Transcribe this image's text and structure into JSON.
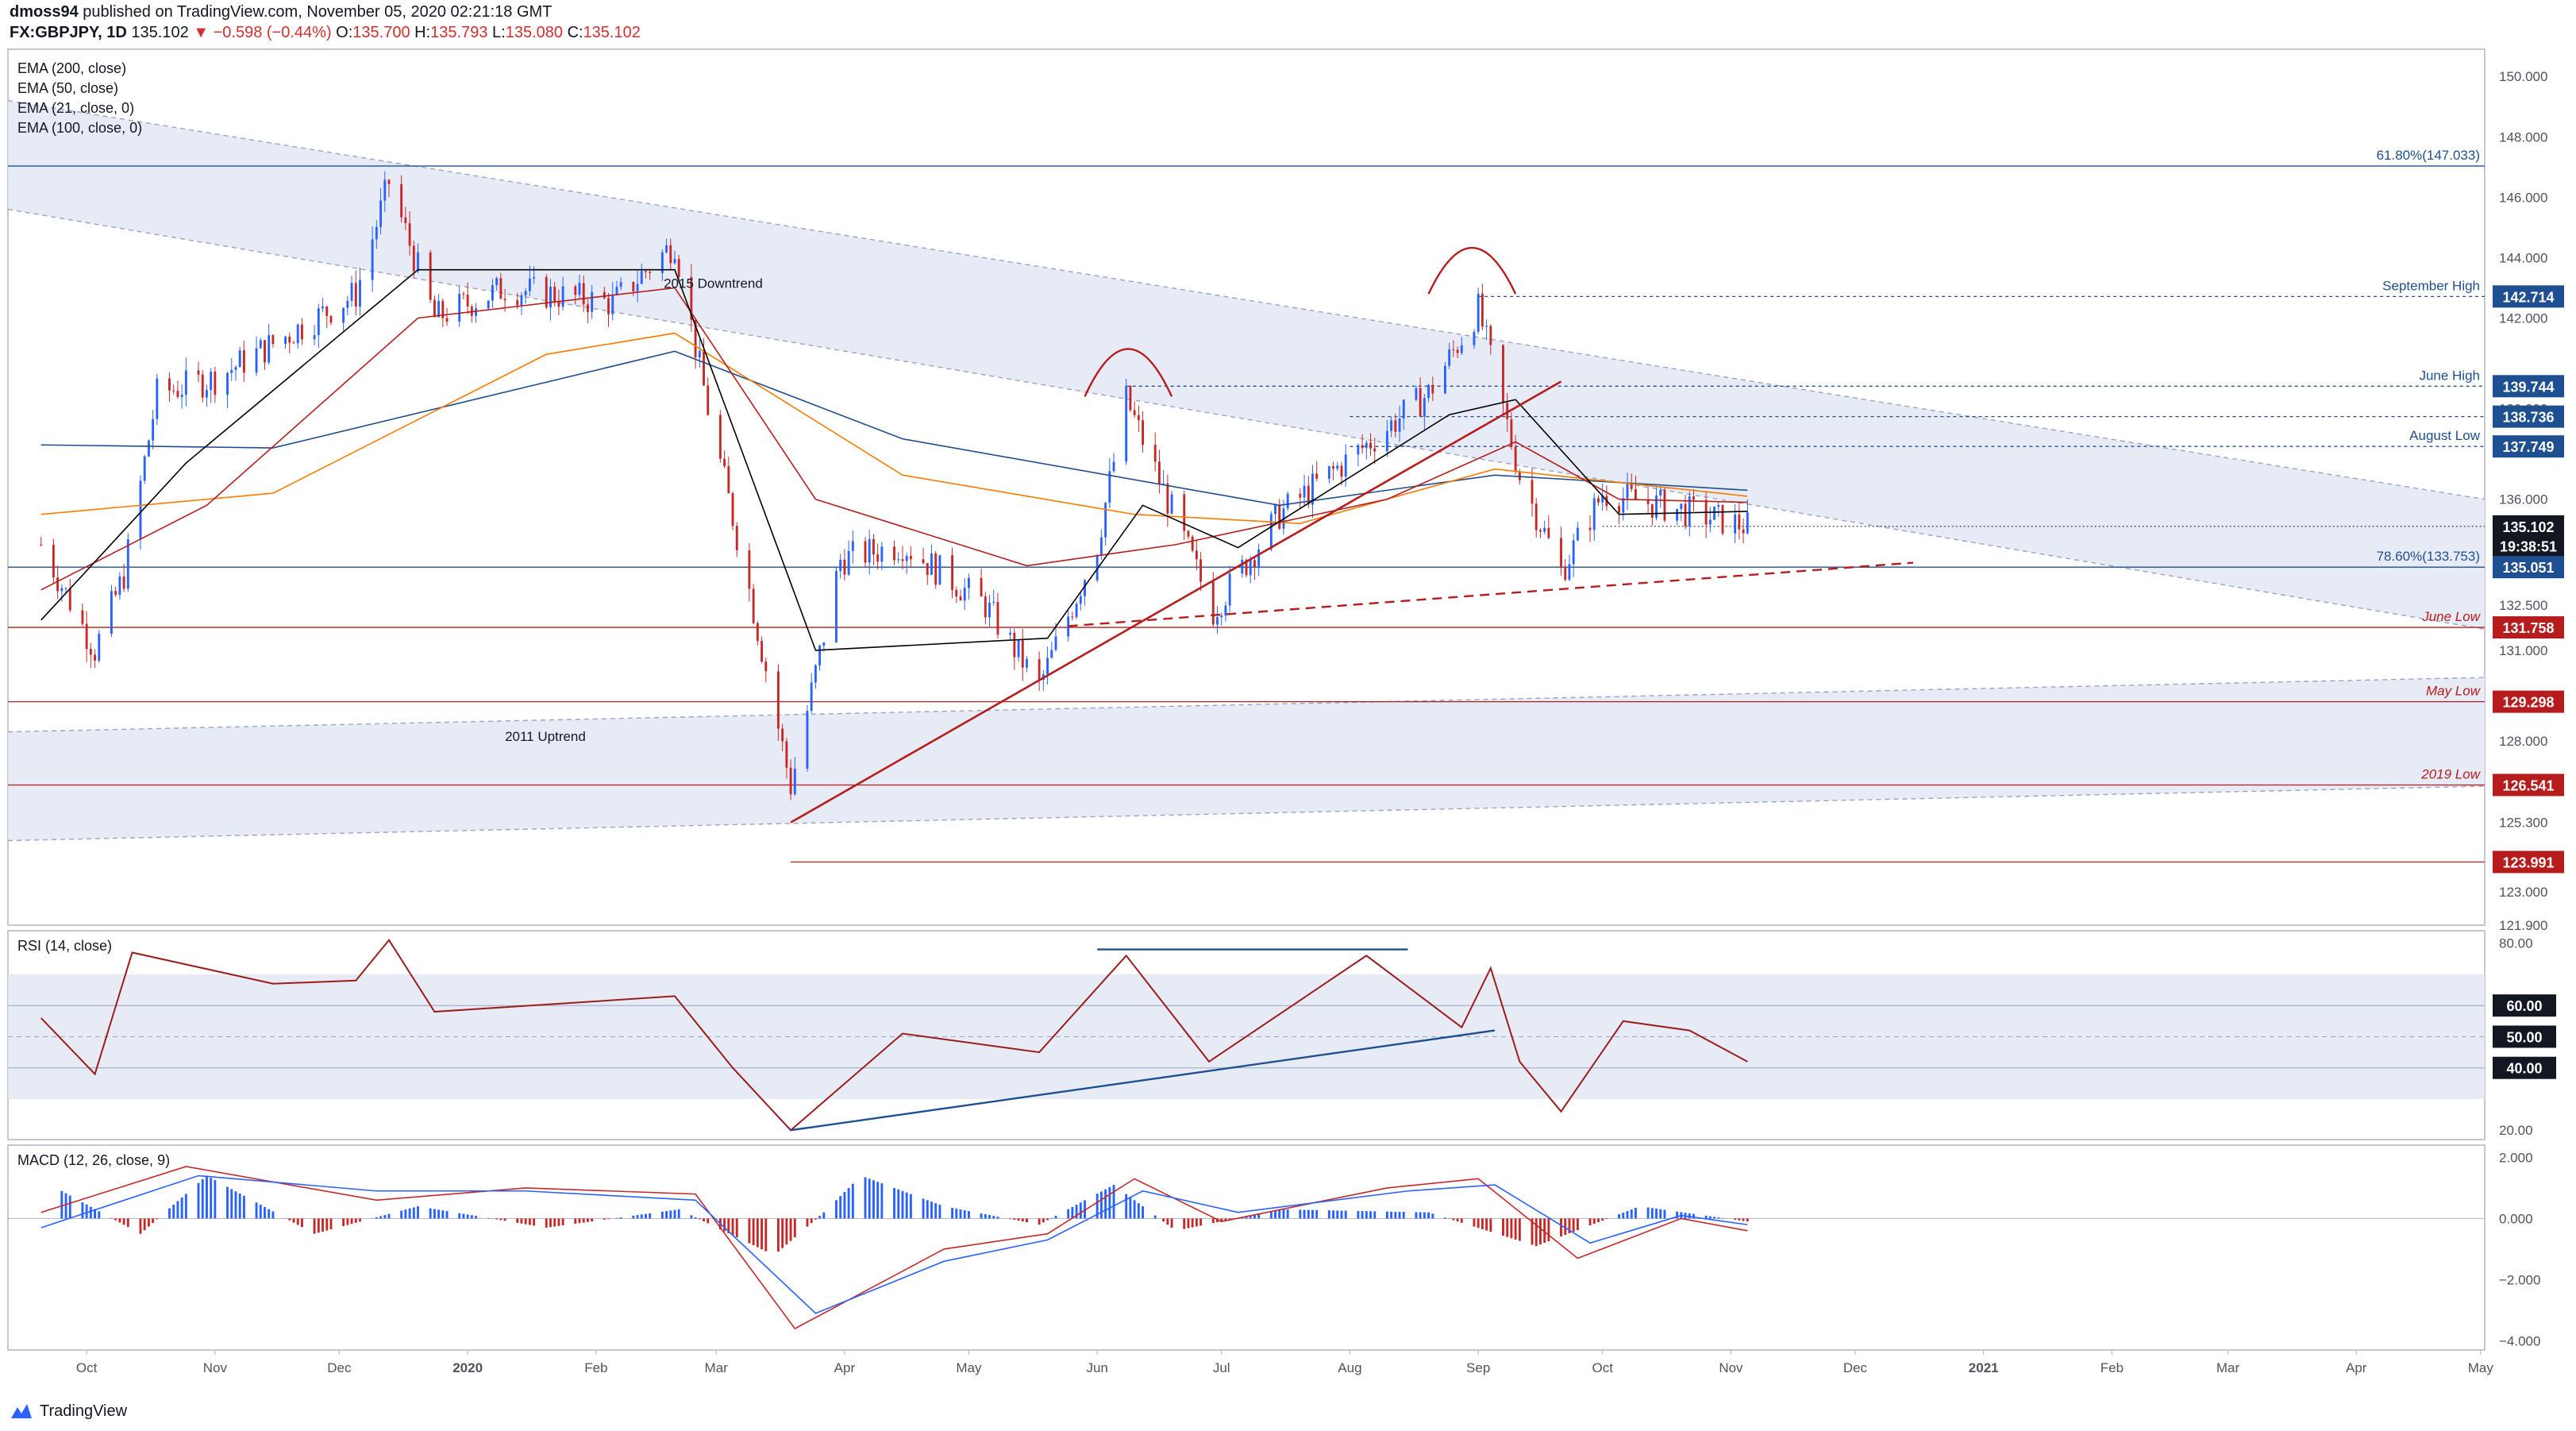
{
  "header": {
    "author": "dmoss94",
    "published_text": "published on TradingView.com, November 05, 2020 02:21:18 GMT",
    "symbol": "FX:GBPJPY, 1D",
    "last": "135.102",
    "change": "−0.598 (−0.44%)",
    "o_label": "O:",
    "o": "135.700",
    "h_label": "H:",
    "h": "135.793",
    "l_label": "L:",
    "l": "135.080",
    "c_label": "C:",
    "c": "135.102"
  },
  "footer": {
    "brand": "TradingView"
  },
  "colors": {
    "up": "#2962ff",
    "down": "#c62828",
    "ema200": "#1f4e8c",
    "ema100": "#f57c00",
    "ema50": "#b71c1c",
    "ema21": "#000000",
    "channel": "#e3e8f4",
    "trend": "#b71c1c",
    "rsi": "#9b1c1c",
    "macd": "#2962ff",
    "signal": "#c62828"
  },
  "chart_data": [
    {
      "type": "candlestick",
      "title": "FX:GBPJPY, 1D",
      "legend": [
        "EMA (200, close)",
        "EMA (50, close)",
        "EMA (21, close, 0)",
        "EMA (100, close, 0)"
      ],
      "x_ticks": [
        "Oct",
        "Nov",
        "Dec",
        "2020",
        "Feb",
        "Mar",
        "Apr",
        "May",
        "Jun",
        "Jul",
        "Aug",
        "Sep",
        "Oct",
        "Nov",
        "Dec",
        "2021",
        "Feb",
        "Mar",
        "Apr",
        "May"
      ],
      "y_ticks": [
        "150.000",
        "148.000",
        "146.000",
        "144.000",
        "142.000",
        "139.000",
        "136.000",
        "134.000",
        "132.500",
        "131.000",
        "128.000",
        "126.500",
        "125.300",
        "123.000",
        "121.900"
      ],
      "ylim": [
        121.9,
        150.9
      ],
      "closes_key_points": [
        {
          "date": "2019-09-20",
          "value": 134.5
        },
        {
          "date": "2019-10-03",
          "value": 131.0
        },
        {
          "date": "2019-10-10",
          "value": 133.5
        },
        {
          "date": "2019-10-18",
          "value": 139.5
        },
        {
          "date": "2019-11-01",
          "value": 140.0
        },
        {
          "date": "2019-12-05",
          "value": 142.8
        },
        {
          "date": "2019-12-13",
          "value": 146.5
        },
        {
          "date": "2019-12-24",
          "value": 142.0
        },
        {
          "date": "2020-01-10",
          "value": 143.0
        },
        {
          "date": "2020-02-05",
          "value": 142.5
        },
        {
          "date": "2020-02-20",
          "value": 144.5
        },
        {
          "date": "2020-02-28",
          "value": 139.0
        },
        {
          "date": "2020-03-09",
          "value": 133.0
        },
        {
          "date": "2020-03-19",
          "value": 126.5
        },
        {
          "date": "2020-03-31",
          "value": 134.0
        },
        {
          "date": "2020-04-15",
          "value": 134.5
        },
        {
          "date": "2020-05-05",
          "value": 132.5
        },
        {
          "date": "2020-05-18",
          "value": 129.8
        },
        {
          "date": "2020-06-01",
          "value": 134.5
        },
        {
          "date": "2020-06-08",
          "value": 139.3
        },
        {
          "date": "2020-06-29",
          "value": 132.3
        },
        {
          "date": "2020-07-15",
          "value": 135.5
        },
        {
          "date": "2020-08-05",
          "value": 137.8
        },
        {
          "date": "2020-08-20",
          "value": 139.5
        },
        {
          "date": "2020-09-01",
          "value": 142.3
        },
        {
          "date": "2020-09-11",
          "value": 136.8
        },
        {
          "date": "2020-09-21",
          "value": 133.6
        },
        {
          "date": "2020-10-01",
          "value": 136.2
        },
        {
          "date": "2020-10-15",
          "value": 135.8
        },
        {
          "date": "2020-11-05",
          "value": 135.102
        }
      ],
      "ema200": [
        {
          "date": "2019-09-20",
          "value": 137.8
        },
        {
          "date": "2019-11-15",
          "value": 137.7
        },
        {
          "date": "2020-02-20",
          "value": 140.9
        },
        {
          "date": "2020-04-15",
          "value": 138.0
        },
        {
          "date": "2020-07-15",
          "value": 135.8
        },
        {
          "date": "2020-09-05",
          "value": 136.8
        },
        {
          "date": "2020-11-05",
          "value": 136.3
        }
      ],
      "ema100": [
        {
          "date": "2019-09-20",
          "value": 135.5
        },
        {
          "date": "2019-11-15",
          "value": 136.2
        },
        {
          "date": "2020-01-20",
          "value": 140.8
        },
        {
          "date": "2020-02-20",
          "value": 141.5
        },
        {
          "date": "2020-04-15",
          "value": 136.8
        },
        {
          "date": "2020-06-10",
          "value": 135.5
        },
        {
          "date": "2020-07-20",
          "value": 135.2
        },
        {
          "date": "2020-09-05",
          "value": 137.0
        },
        {
          "date": "2020-11-05",
          "value": 136.1
        }
      ],
      "ema50": [
        {
          "date": "2019-09-20",
          "value": 133.0
        },
        {
          "date": "2019-10-30",
          "value": 135.8
        },
        {
          "date": "2019-12-20",
          "value": 142.0
        },
        {
          "date": "2020-02-20",
          "value": 143.0
        },
        {
          "date": "2020-03-25",
          "value": 136.0
        },
        {
          "date": "2020-05-15",
          "value": 133.8
        },
        {
          "date": "2020-06-20",
          "value": 134.5
        },
        {
          "date": "2020-08-10",
          "value": 136.0
        },
        {
          "date": "2020-09-10",
          "value": 137.9
        },
        {
          "date": "2020-10-05",
          "value": 136.0
        },
        {
          "date": "2020-11-05",
          "value": 135.9
        }
      ],
      "ema21": [
        {
          "date": "2019-09-20",
          "value": 132.0
        },
        {
          "date": "2019-10-25",
          "value": 137.2
        },
        {
          "date": "2019-12-20",
          "value": 143.6
        },
        {
          "date": "2020-02-20",
          "value": 143.6
        },
        {
          "date": "2020-03-25",
          "value": 131.0
        },
        {
          "date": "2020-05-20",
          "value": 131.4
        },
        {
          "date": "2020-06-12",
          "value": 135.8
        },
        {
          "date": "2020-07-05",
          "value": 134.4
        },
        {
          "date": "2020-08-25",
          "value": 138.8
        },
        {
          "date": "2020-09-10",
          "value": 139.3
        },
        {
          "date": "2020-10-05",
          "value": 135.5
        },
        {
          "date": "2020-11-05",
          "value": 135.6
        }
      ],
      "level_labels": [
        {
          "label": "61.80%(147.033)",
          "value": 147.033
        },
        {
          "label": "September High",
          "value": 142.714
        },
        {
          "label": "June High",
          "value": 139.744
        },
        {
          "label": "August Low",
          "value": 137.749
        },
        {
          "label": "78.60%(133.753)",
          "value": 133.753
        },
        {
          "label": "June Low",
          "value": 131.758
        },
        {
          "label": "May Low",
          "value": 129.298
        },
        {
          "label": "2019 Low",
          "value": 126.541
        }
      ],
      "price_badges": [
        {
          "label": "142.714",
          "value": 142.714,
          "color": "#1e4f91"
        },
        {
          "label": "139.744",
          "value": 139.744,
          "color": "#1e4f91"
        },
        {
          "label": "138.736",
          "value": 138.736,
          "color": "#1e4f91"
        },
        {
          "label": "137.749",
          "value": 137.749,
          "color": "#1e4f91"
        },
        {
          "label": "135.102",
          "value": 135.102,
          "color": "#131722"
        },
        {
          "label": "19:38:51",
          "value": 134.45,
          "color": "#131722"
        },
        {
          "label": "135.051",
          "value": 133.753,
          "color": "#1e4f91"
        },
        {
          "label": "131.758",
          "value": 131.758,
          "color": "#b71c1c"
        },
        {
          "label": "129.298",
          "value": 129.298,
          "color": "#b71c1c"
        },
        {
          "label": "126.541",
          "value": 126.541,
          "color": "#b71c1c"
        },
        {
          "label": "123.991",
          "value": 123.991,
          "color": "#b71c1c"
        }
      ],
      "annotations": [
        "2015 Downtrend",
        "2011 Uptrend"
      ]
    },
    {
      "type": "line",
      "title": "RSI (14, close)",
      "y_ticks": [
        "80.00",
        "20.00"
      ],
      "level_badges": [
        "60.00",
        "50.00",
        "40.00"
      ],
      "ylim": [
        17,
        84
      ],
      "series": [
        {
          "values": [
            {
              "date": "2019-09-20",
              "value": 56
            },
            {
              "date": "2019-10-03",
              "value": 38
            },
            {
              "date": "2019-10-12",
              "value": 77
            },
            {
              "date": "2019-11-15",
              "value": 67
            },
            {
              "date": "2019-12-05",
              "value": 68
            },
            {
              "date": "2019-12-13",
              "value": 81
            },
            {
              "date": "2019-12-24",
              "value": 58
            },
            {
              "date": "2020-02-20",
              "value": 63
            },
            {
              "date": "2020-03-05",
              "value": 40
            },
            {
              "date": "2020-03-19",
              "value": 20
            },
            {
              "date": "2020-04-15",
              "value": 51
            },
            {
              "date": "2020-05-18",
              "value": 45
            },
            {
              "date": "2020-06-08",
              "value": 76
            },
            {
              "date": "2020-06-28",
              "value": 42
            },
            {
              "date": "2020-08-05",
              "value": 76
            },
            {
              "date": "2020-08-28",
              "value": 53
            },
            {
              "date": "2020-09-04",
              "value": 72
            },
            {
              "date": "2020-09-11",
              "value": 42
            },
            {
              "date": "2020-09-21",
              "value": 26
            },
            {
              "date": "2020-10-06",
              "value": 55
            },
            {
              "date": "2020-10-22",
              "value": 52
            },
            {
              "date": "2020-11-05",
              "value": 42
            }
          ]
        }
      ]
    },
    {
      "type": "bar",
      "title": "MACD (12, 26, close, 9)",
      "y_ticks": [
        "2.000",
        "0.000",
        "−2.000",
        "−4.000"
      ],
      "ylim": [
        -4.3,
        2.4
      ],
      "histogram": [
        {
          "date": "2019-09-25",
          "value": 0.9
        },
        {
          "date": "2019-10-14",
          "value": -0.5
        },
        {
          "date": "2019-10-30",
          "value": 1.4
        },
        {
          "date": "2019-11-25",
          "value": -0.5
        },
        {
          "date": "2019-12-20",
          "value": 0.4
        },
        {
          "date": "2020-01-20",
          "value": -0.3
        },
        {
          "date": "2020-02-21",
          "value": 0.3
        },
        {
          "date": "2020-03-15",
          "value": -1.2
        },
        {
          "date": "2020-03-27",
          "value": 0.2
        },
        {
          "date": "2020-04-05",
          "value": 1.4
        },
        {
          "date": "2020-04-25",
          "value": 0.4
        },
        {
          "date": "2020-05-18",
          "value": -0.2
        },
        {
          "date": "2020-06-05",
          "value": 1.1
        },
        {
          "date": "2020-06-20",
          "value": -0.4
        },
        {
          "date": "2020-07-15",
          "value": 0.3
        },
        {
          "date": "2020-08-20",
          "value": 0.2
        },
        {
          "date": "2020-09-15",
          "value": -0.9
        },
        {
          "date": "2020-10-10",
          "value": 0.4
        },
        {
          "date": "2020-11-05",
          "value": -0.1
        }
      ],
      "series": [
        {
          "values": [
            {
              "date": "2019-09-20",
              "value": 0.2
            },
            {
              "date": "2019-10-25",
              "value": 1.7
            },
            {
              "date": "2019-12-10",
              "value": 0.6
            },
            {
              "date": "2020-01-15",
              "value": 1.0
            },
            {
              "date": "2020-02-25",
              "value": 0.8
            },
            {
              "date": "2020-03-20",
              "value": -3.6
            },
            {
              "date": "2020-04-25",
              "value": -1.0
            },
            {
              "date": "2020-05-20",
              "value": -0.5
            },
            {
              "date": "2020-06-10",
              "value": 1.3
            },
            {
              "date": "2020-07-01",
              "value": -0.1
            },
            {
              "date": "2020-08-10",
              "value": 1.0
            },
            {
              "date": "2020-09-01",
              "value": 1.3
            },
            {
              "date": "2020-09-25",
              "value": -1.3
            },
            {
              "date": "2020-10-20",
              "value": 0.0
            },
            {
              "date": "2020-11-05",
              "value": -0.4
            }
          ]
        },
        {
          "values": [
            {
              "date": "2019-09-20",
              "value": -0.3
            },
            {
              "date": "2019-10-28",
              "value": 1.4
            },
            {
              "date": "2019-12-10",
              "value": 0.9
            },
            {
              "date": "2020-01-15",
              "value": 0.9
            },
            {
              "date": "2020-02-25",
              "value": 0.6
            },
            {
              "date": "2020-03-25",
              "value": -3.1
            },
            {
              "date": "2020-04-25",
              "value": -1.4
            },
            {
              "date": "2020-05-20",
              "value": -0.7
            },
            {
              "date": "2020-06-12",
              "value": 0.9
            },
            {
              "date": "2020-07-05",
              "value": 0.2
            },
            {
              "date": "2020-08-15",
              "value": 0.9
            },
            {
              "date": "2020-09-05",
              "value": 1.1
            },
            {
              "date": "2020-09-28",
              "value": -0.8
            },
            {
              "date": "2020-10-20",
              "value": 0.1
            },
            {
              "date": "2020-11-05",
              "value": -0.2
            }
          ]
        }
      ]
    }
  ]
}
